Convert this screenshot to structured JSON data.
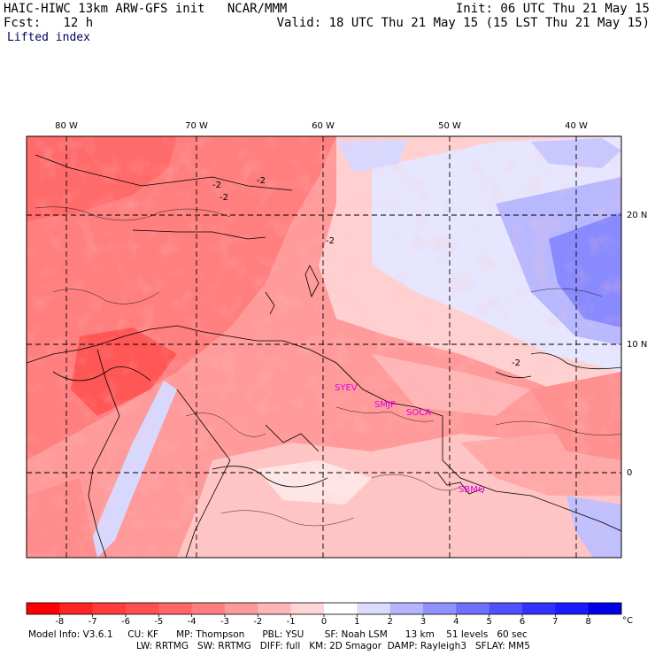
{
  "header": {
    "model_title": "HAIC-HIWC 13km ARW-GFS init",
    "org": "NCAR/MMM",
    "init": "Init: 06 UTC Thu 21 May 15",
    "fcst_label": "Fcst:",
    "fcst_value": "12 h",
    "valid": "Valid: 18 UTC Thu 21 May 15 (15 LST Thu 21 May 15)",
    "field": "Lifted index"
  },
  "map": {
    "lon_labels": [
      "80 W",
      "70 W",
      "60 W",
      "50 W",
      "40 W"
    ],
    "lat_labels": [
      "20 N",
      "10 N",
      "0"
    ],
    "contour_labels": [
      "-2",
      "-2",
      "-2",
      "-2",
      "-2"
    ],
    "stations": [
      "SYEV",
      "SMJP",
      "SOCA",
      "SBMQ"
    ],
    "station_color": "#e000e0"
  },
  "colorbar": {
    "tick_labels": [
      "-8",
      "-7",
      "-6",
      "-5",
      "-4",
      "-3",
      "-2",
      "-1",
      "0",
      "1",
      "2",
      "3",
      "4",
      "5",
      "6",
      "7",
      "8"
    ],
    "unit": "°C",
    "colors": [
      "#ff0000",
      "#ff2424",
      "#ff3c3c",
      "#ff5050",
      "#ff6666",
      "#ff7e7e",
      "#ff9a9a",
      "#ffb6b6",
      "#ffd6d6",
      "#ffffff",
      "#dcdcff",
      "#b4b4ff",
      "#9090ff",
      "#7070ff",
      "#5050ff",
      "#3232ff",
      "#1a1aff",
      "#0000e6"
    ]
  },
  "footer": {
    "line1": [
      "Model Info: V3.6.1",
      "CU: KF",
      "MP: Thompson",
      "PBL: YSU",
      "SF: Noah LSM",
      "13 km",
      "51 levels",
      "60 sec"
    ],
    "line2": [
      "LW: RRTMG",
      "SW: RRTMG",
      "DIFF: full",
      "KM: 2D Smagor",
      "DAMP: Rayleigh3",
      "SFLAY: MM5"
    ]
  }
}
